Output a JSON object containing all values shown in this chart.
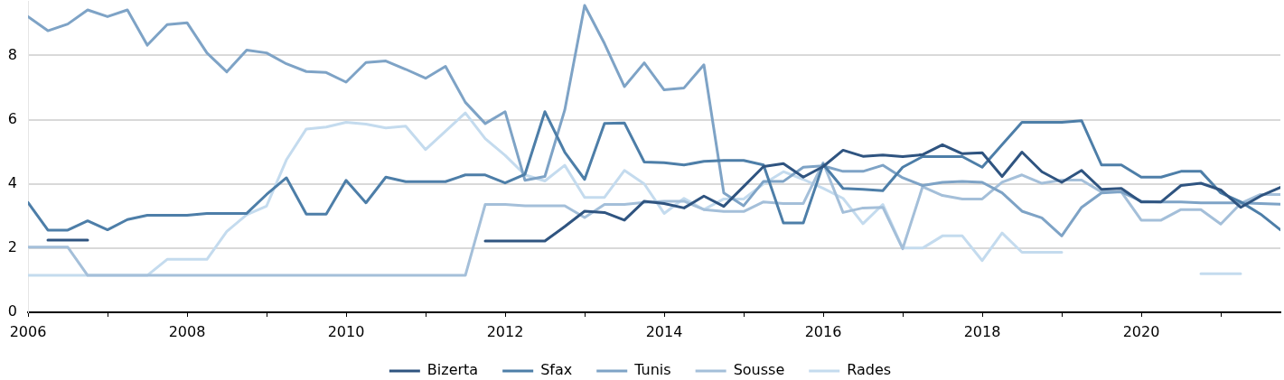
{
  "chart_data": {
    "type": "line",
    "x": [
      2006,
      2006.25,
      2006.5,
      2006.75,
      2007,
      2007.25,
      2007.5,
      2007.75,
      2008,
      2008.25,
      2008.5,
      2008.75,
      2009,
      2009.25,
      2009.5,
      2009.75,
      2010,
      2010.25,
      2010.5,
      2010.75,
      2011,
      2011.25,
      2011.5,
      2011.75,
      2012,
      2012.25,
      2012.5,
      2012.75,
      2013,
      2013.25,
      2013.5,
      2013.75,
      2014,
      2014.25,
      2014.5,
      2014.75,
      2015,
      2015.25,
      2015.5,
      2015.75,
      2016,
      2016.25,
      2016.5,
      2016.75,
      2017,
      2017.25,
      2017.5,
      2017.75,
      2018,
      2018.25,
      2018.5,
      2018.75,
      2019,
      2019.25,
      2019.5,
      2019.75,
      2020,
      2020.25,
      2020.5,
      2020.75,
      2021,
      2021.25,
      2021.5,
      2021.75
    ],
    "series": [
      {
        "name": "Bizerta",
        "color": "#2f5480",
        "values": [
          null,
          2.25,
          2.25,
          2.25,
          null,
          null,
          null,
          null,
          null,
          null,
          null,
          null,
          null,
          null,
          null,
          null,
          null,
          null,
          null,
          null,
          null,
          null,
          null,
          2.22,
          2.22,
          2.22,
          2.22,
          2.67,
          3.15,
          3.11,
          2.87,
          3.46,
          3.39,
          3.25,
          3.62,
          3.3,
          3.92,
          4.54,
          4.63,
          4.21,
          4.54,
          5.05,
          4.86,
          4.9,
          4.85,
          4.91,
          5.22,
          4.94,
          4.97,
          4.23,
          4.99,
          4.38,
          4.05,
          4.42,
          3.83,
          3.86,
          3.44,
          3.44,
          3.95,
          4.02,
          3.81,
          3.27,
          3.62,
          3.89
        ]
      },
      {
        "name": "Sfax",
        "color": "#4d7ea8",
        "values": [
          3.42,
          2.56,
          2.56,
          2.85,
          2.57,
          2.89,
          3.02,
          3.02,
          3.02,
          3.08,
          3.08,
          3.08,
          3.67,
          4.19,
          3.06,
          3.06,
          4.11,
          3.41,
          4.21,
          4.07,
          4.07,
          4.07,
          4.28,
          4.28,
          4.03,
          4.3,
          6.25,
          4.99,
          4.14,
          5.88,
          5.9,
          4.68,
          4.66,
          4.59,
          4.7,
          4.73,
          4.73,
          4.59,
          2.78,
          2.78,
          4.61,
          3.86,
          3.83,
          3.79,
          4.52,
          4.85,
          4.85,
          4.85,
          4.52,
          5.22,
          5.92,
          5.92,
          5.92,
          5.97,
          4.59,
          4.59,
          4.21,
          4.21,
          4.39,
          4.39,
          3.72,
          3.44,
          3.06,
          2.57
        ]
      },
      {
        "name": "Tunis",
        "color": "#7ea3c6",
        "values": [
          9.21,
          8.77,
          8.98,
          9.42,
          9.21,
          9.42,
          8.32,
          8.96,
          9.02,
          8.08,
          7.49,
          8.17,
          8.08,
          7.74,
          7.5,
          7.47,
          7.17,
          7.78,
          7.83,
          7.57,
          7.29,
          7.66,
          6.54,
          5.88,
          6.25,
          4.11,
          4.23,
          6.3,
          9.56,
          8.37,
          7.03,
          7.77,
          6.93,
          6.99,
          7.71,
          3.72,
          3.32,
          4.08,
          4.08,
          4.52,
          4.56,
          4.39,
          4.39,
          4.58,
          4.19,
          3.95,
          4.05,
          4.08,
          4.05,
          3.72,
          3.15,
          2.94,
          2.38,
          3.27,
          3.72,
          3.75,
          3.46,
          3.44,
          3.44,
          3.41,
          3.41,
          3.41,
          3.39,
          3.37
        ]
      },
      {
        "name": "Sousse",
        "color": "#a4bfd9",
        "values": [
          2.03,
          2.03,
          2.03,
          1.15,
          1.15,
          1.15,
          1.15,
          1.15,
          1.15,
          1.15,
          1.15,
          1.15,
          1.15,
          1.15,
          1.15,
          1.15,
          1.15,
          1.15,
          1.15,
          1.15,
          1.15,
          1.15,
          1.15,
          3.36,
          3.36,
          3.32,
          3.32,
          3.32,
          2.95,
          3.36,
          3.36,
          3.42,
          3.46,
          3.46,
          3.2,
          3.14,
          3.14,
          3.44,
          3.39,
          3.39,
          4.66,
          3.11,
          3.25,
          3.27,
          1.98,
          3.91,
          3.64,
          3.53,
          3.53,
          4.05,
          4.28,
          4.02,
          4.12,
          4.12,
          3.75,
          3.75,
          2.87,
          2.87,
          3.2,
          3.2,
          2.75,
          3.39,
          3.67,
          3.67
        ]
      },
      {
        "name": "Rades",
        "color": "#c4dbee",
        "values": [
          1.15,
          1.15,
          1.15,
          1.15,
          1.15,
          1.15,
          1.15,
          1.65,
          1.65,
          1.65,
          2.52,
          3.04,
          3.31,
          4.75,
          5.71,
          5.77,
          5.92,
          5.86,
          5.74,
          5.8,
          5.07,
          5.64,
          6.21,
          5.41,
          4.89,
          4.28,
          4.09,
          4.58,
          3.58,
          3.58,
          4.42,
          4.0,
          3.08,
          3.55,
          3.2,
          3.53,
          3.53,
          4.0,
          4.38,
          4.14,
          3.86,
          3.55,
          2.76,
          3.36,
          2.0,
          2.0,
          2.38,
          2.38,
          1.61,
          2.47,
          1.87,
          1.87,
          1.87,
          null,
          null,
          null,
          null,
          null,
          null,
          1.2,
          1.2,
          1.2,
          null,
          null
        ]
      }
    ],
    "xlim": [
      2006,
      2021.75
    ],
    "xticks": [
      2006,
      {
        "value": 2007,
        "label": null
      },
      2008,
      {
        "value": 2009,
        "label": null
      },
      2010,
      {
        "value": 2011,
        "label": null
      },
      2012,
      {
        "value": 2013,
        "label": null
      },
      2014,
      {
        "value": 2015,
        "label": null
      },
      2016,
      {
        "value": 2017,
        "label": null
      },
      2018,
      {
        "value": 2019,
        "label": null
      },
      2020,
      {
        "value": 2021,
        "label": null
      }
    ],
    "ylim": [
      0,
      9.7
    ],
    "yticks": [
      0,
      2,
      4,
      6,
      8
    ],
    "grid": "y",
    "legend": "bottom",
    "marker": "none"
  }
}
